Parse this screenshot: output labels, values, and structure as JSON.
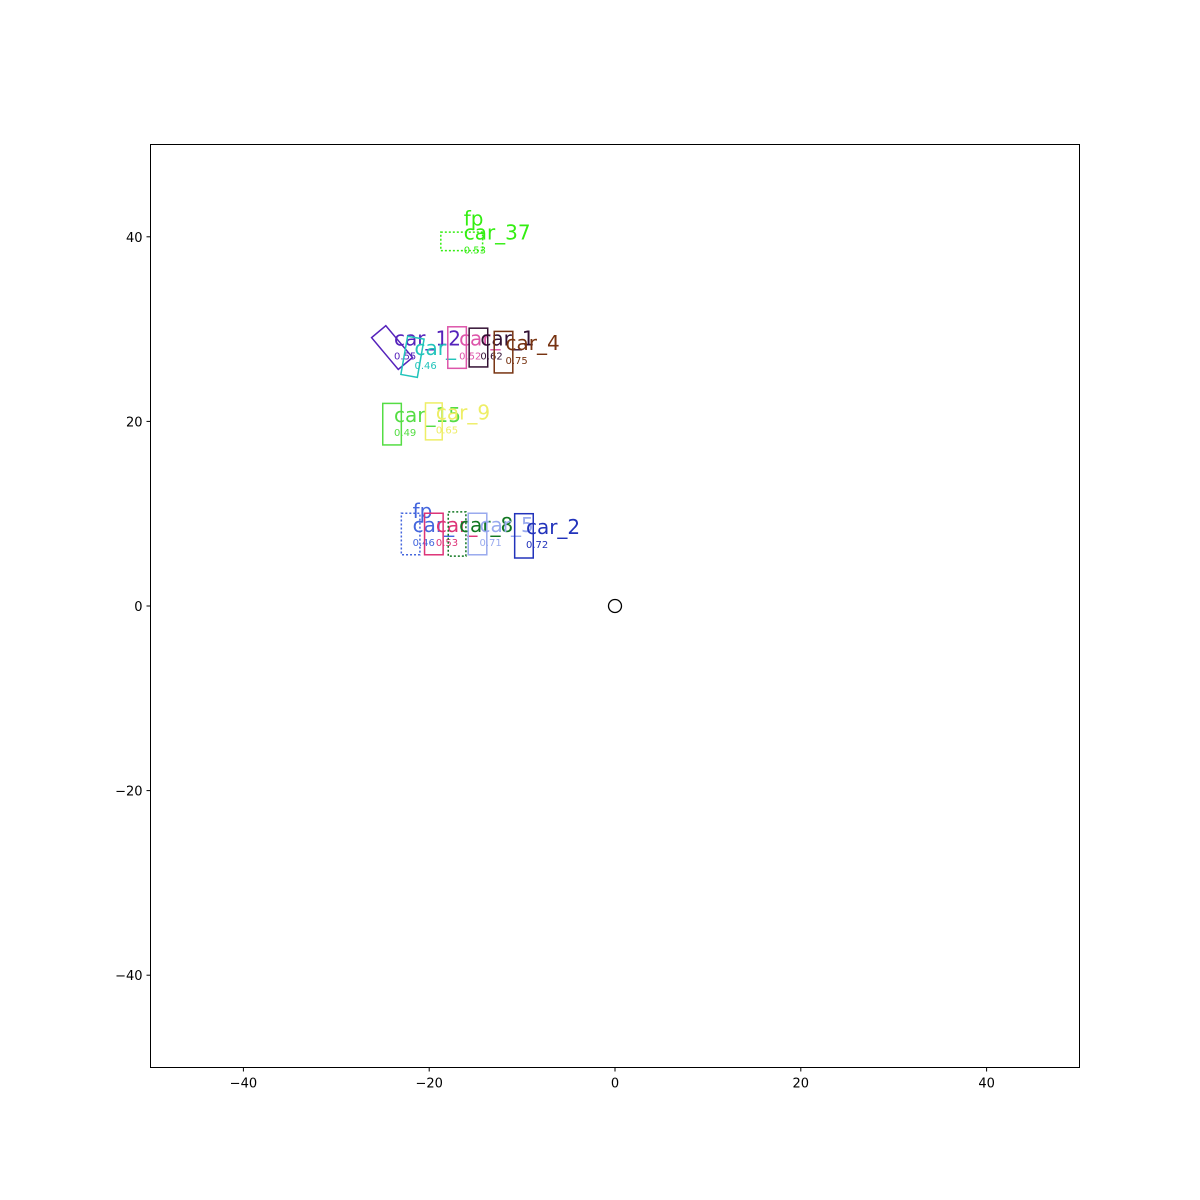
{
  "chart_data": {
    "type": "scatter",
    "title": "",
    "xlabel": "",
    "ylabel": "",
    "xlim": [
      -50,
      50
    ],
    "ylim": [
      -50,
      50
    ],
    "x_ticks": [
      -40,
      -20,
      0,
      20,
      40
    ],
    "y_ticks": [
      -40,
      -20,
      0,
      20,
      40
    ],
    "tick_labels": {
      "x": [
        "−40",
        "−20",
        "0",
        "20",
        "40"
      ],
      "y": [
        "−40",
        "−20",
        "0",
        "20",
        "40"
      ]
    },
    "grid": false,
    "ego_marker": {
      "x": 0,
      "y": 0
    },
    "boxes": [
      {
        "label": "car_37",
        "extra_label": "fp",
        "score": "0.53",
        "x": -16.5,
        "y": 39.5,
        "w": 4.5,
        "h": 2.0,
        "angle": 0,
        "color": "#33ee11",
        "dashed": true
      },
      {
        "label": "car_12",
        "extra_label": "",
        "score": "0.55",
        "x": -24,
        "y": 28,
        "w": 2.0,
        "h": 4.5,
        "angle": -40,
        "color": "#5522bb",
        "dashed": false
      },
      {
        "label": "car_",
        "extra_label": "",
        "score": "0.46",
        "x": -21.8,
        "y": 27,
        "w": 1.8,
        "h": 4.2,
        "angle": 10,
        "color": "#22c4bb",
        "dashed": false
      },
      {
        "label": "car_",
        "extra_label": "",
        "score": "0.52",
        "x": -17,
        "y": 28,
        "w": 2.0,
        "h": 4.5,
        "angle": 0,
        "color": "#dd55aa",
        "dashed": false
      },
      {
        "label": "car_1",
        "extra_label": "",
        "score": "0.62",
        "x": -14.7,
        "y": 28,
        "w": 2.0,
        "h": 4.2,
        "angle": 0,
        "color": "#331133",
        "dashed": false
      },
      {
        "label": "car_4",
        "extra_label": "",
        "score": "0.75",
        "x": -12,
        "y": 27.5,
        "w": 2.0,
        "h": 4.5,
        "angle": 0,
        "color": "#773311",
        "dashed": false
      },
      {
        "label": "car_15",
        "extra_label": "",
        "score": "0.49",
        "x": -24,
        "y": 19.7,
        "w": 2.0,
        "h": 4.5,
        "angle": 0,
        "color": "#55dd44",
        "dashed": false
      },
      {
        "label": "car_9",
        "extra_label": "",
        "score": "0.65",
        "x": -19.5,
        "y": 20,
        "w": 1.8,
        "h": 4.0,
        "angle": 0,
        "color": "#eeee66",
        "dashed": false
      },
      {
        "label": "car_",
        "extra_label": "fp",
        "score": "0.46",
        "x": -22,
        "y": 7.8,
        "w": 2.0,
        "h": 4.5,
        "angle": 0,
        "color": "#4466dd",
        "dashed": true
      },
      {
        "label": "car_",
        "extra_label": "",
        "score": "0.53",
        "x": -19.5,
        "y": 7.8,
        "w": 2.0,
        "h": 4.5,
        "angle": 0,
        "color": "#dd3377",
        "dashed": false
      },
      {
        "label": "car_8",
        "extra_label": "",
        "score": "",
        "x": -17,
        "y": 7.8,
        "w": 1.9,
        "h": 4.8,
        "angle": 0,
        "color": "#117722",
        "dashed": true
      },
      {
        "label": "car_5",
        "extra_label": "",
        "score": "0.71",
        "x": -14.8,
        "y": 7.8,
        "w": 2.0,
        "h": 4.5,
        "angle": 0,
        "color": "#99aaee",
        "dashed": false
      },
      {
        "label": "car_2",
        "extra_label": "",
        "score": "0.72",
        "x": -9.8,
        "y": 7.6,
        "w": 2.0,
        "h": 4.8,
        "angle": 0,
        "color": "#2233bb",
        "dashed": false
      }
    ]
  }
}
